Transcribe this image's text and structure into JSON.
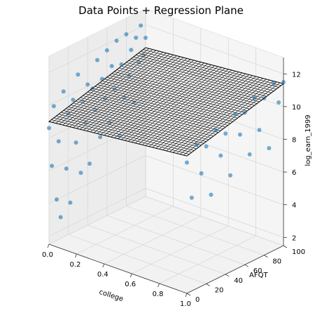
{
  "chart_data": {
    "type": "scatter",
    "title": "Data Points + Regression Plane",
    "xlabel": "college",
    "ylabel": "AFQT",
    "zlabel": "log_earn_1999",
    "xlim": [
      0,
      1
    ],
    "ylim": [
      0,
      100
    ],
    "zlim": [
      1.5,
      13
    ],
    "x_ticks": [
      "0.0",
      "0.2",
      "0.4",
      "0.6",
      "0.8",
      "1.0"
    ],
    "y_ticks": [
      "0",
      "20",
      "40",
      "60",
      "80",
      "100"
    ],
    "z_ticks": [
      "2",
      "4",
      "6",
      "8",
      "10",
      "12"
    ],
    "grid": true,
    "point_color": "#1f77b4",
    "plane_color": "#000000",
    "regression_plane": [
      {
        "x": 0,
        "y": 0,
        "z": 9.0
      },
      {
        "x": 1,
        "y": 0,
        "z": 9.9
      },
      {
        "x": 0,
        "y": 100,
        "z": 10.6
      },
      {
        "x": 1,
        "y": 100,
        "z": 11.4
      }
    ],
    "series": [
      {
        "points": [
          {
            "x": 0,
            "y": 0,
            "z": 8.6
          },
          {
            "x": 0,
            "y": 3,
            "z": 6.2
          },
          {
            "x": 0,
            "y": 5,
            "z": 9.8
          },
          {
            "x": 0,
            "y": 8,
            "z": 4.0
          },
          {
            "x": 0,
            "y": 10,
            "z": 7.5
          },
          {
            "x": 0,
            "y": 12,
            "z": 2.8
          },
          {
            "x": 0,
            "y": 15,
            "z": 10.4
          },
          {
            "x": 0,
            "y": 18,
            "z": 5.6
          },
          {
            "x": 0,
            "y": 20,
            "z": 8.9
          },
          {
            "x": 0,
            "y": 22,
            "z": 3.4
          },
          {
            "x": 0,
            "y": 25,
            "z": 9.6
          },
          {
            "x": 0,
            "y": 28,
            "z": 6.9
          },
          {
            "x": 0,
            "y": 30,
            "z": 11.0
          },
          {
            "x": 0,
            "y": 33,
            "z": 4.9
          },
          {
            "x": 0,
            "y": 35,
            "z": 9.2
          },
          {
            "x": 0,
            "y": 38,
            "z": 7.8
          },
          {
            "x": 0,
            "y": 40,
            "z": 10.1
          },
          {
            "x": 0,
            "y": 42,
            "z": 5.2
          },
          {
            "x": 0,
            "y": 45,
            "z": 9.7
          },
          {
            "x": 0,
            "y": 48,
            "z": 8.3
          },
          {
            "x": 0,
            "y": 50,
            "z": 11.3
          },
          {
            "x": 0,
            "y": 53,
            "z": 6.5
          },
          {
            "x": 0,
            "y": 55,
            "z": 10.0
          },
          {
            "x": 0,
            "y": 58,
            "z": 8.7
          },
          {
            "x": 0,
            "y": 60,
            "z": 11.6
          },
          {
            "x": 0,
            "y": 63,
            "z": 7.1
          },
          {
            "x": 0,
            "y": 65,
            "z": 10.5
          },
          {
            "x": 0,
            "y": 68,
            "z": 9.0
          },
          {
            "x": 0,
            "y": 70,
            "z": 11.9
          },
          {
            "x": 0,
            "y": 73,
            "z": 6.0
          },
          {
            "x": 0,
            "y": 75,
            "z": 10.3
          },
          {
            "x": 0,
            "y": 78,
            "z": 8.2
          },
          {
            "x": 0,
            "y": 80,
            "z": 12.0
          },
          {
            "x": 0,
            "y": 83,
            "z": 9.4
          },
          {
            "x": 0,
            "y": 85,
            "z": 10.9
          },
          {
            "x": 0,
            "y": 88,
            "z": 7.6
          },
          {
            "x": 0,
            "y": 90,
            "z": 11.5
          },
          {
            "x": 0,
            "y": 93,
            "z": 9.9
          },
          {
            "x": 0,
            "y": 95,
            "z": 12.1
          },
          {
            "x": 0,
            "y": 98,
            "z": 10.2
          },
          {
            "x": 0,
            "y": 100,
            "z": 11.2
          },
          {
            "x": 1,
            "y": 0,
            "z": 9.5
          },
          {
            "x": 1,
            "y": 5,
            "z": 7.2
          },
          {
            "x": 1,
            "y": 10,
            "z": 10.3
          },
          {
            "x": 1,
            "y": 15,
            "z": 8.4
          },
          {
            "x": 1,
            "y": 20,
            "z": 9.9
          },
          {
            "x": 1,
            "y": 25,
            "z": 6.8
          },
          {
            "x": 1,
            "y": 30,
            "z": 10.6
          },
          {
            "x": 1,
            "y": 35,
            "z": 8.9
          },
          {
            "x": 1,
            "y": 40,
            "z": 10.1
          },
          {
            "x": 1,
            "y": 45,
            "z": 7.4
          },
          {
            "x": 1,
            "y": 50,
            "z": 11.0
          },
          {
            "x": 1,
            "y": 55,
            "z": 9.6
          },
          {
            "x": 1,
            "y": 60,
            "z": 10.8
          },
          {
            "x": 1,
            "y": 65,
            "z": 8.1
          },
          {
            "x": 1,
            "y": 70,
            "z": 11.4
          },
          {
            "x": 1,
            "y": 75,
            "z": 9.3
          },
          {
            "x": 1,
            "y": 80,
            "z": 11.1
          },
          {
            "x": 1,
            "y": 85,
            "z": 7.9
          },
          {
            "x": 1,
            "y": 90,
            "z": 11.7
          },
          {
            "x": 1,
            "y": 95,
            "z": 10.4
          },
          {
            "x": 1,
            "y": 100,
            "z": 11.5
          }
        ]
      }
    ]
  }
}
